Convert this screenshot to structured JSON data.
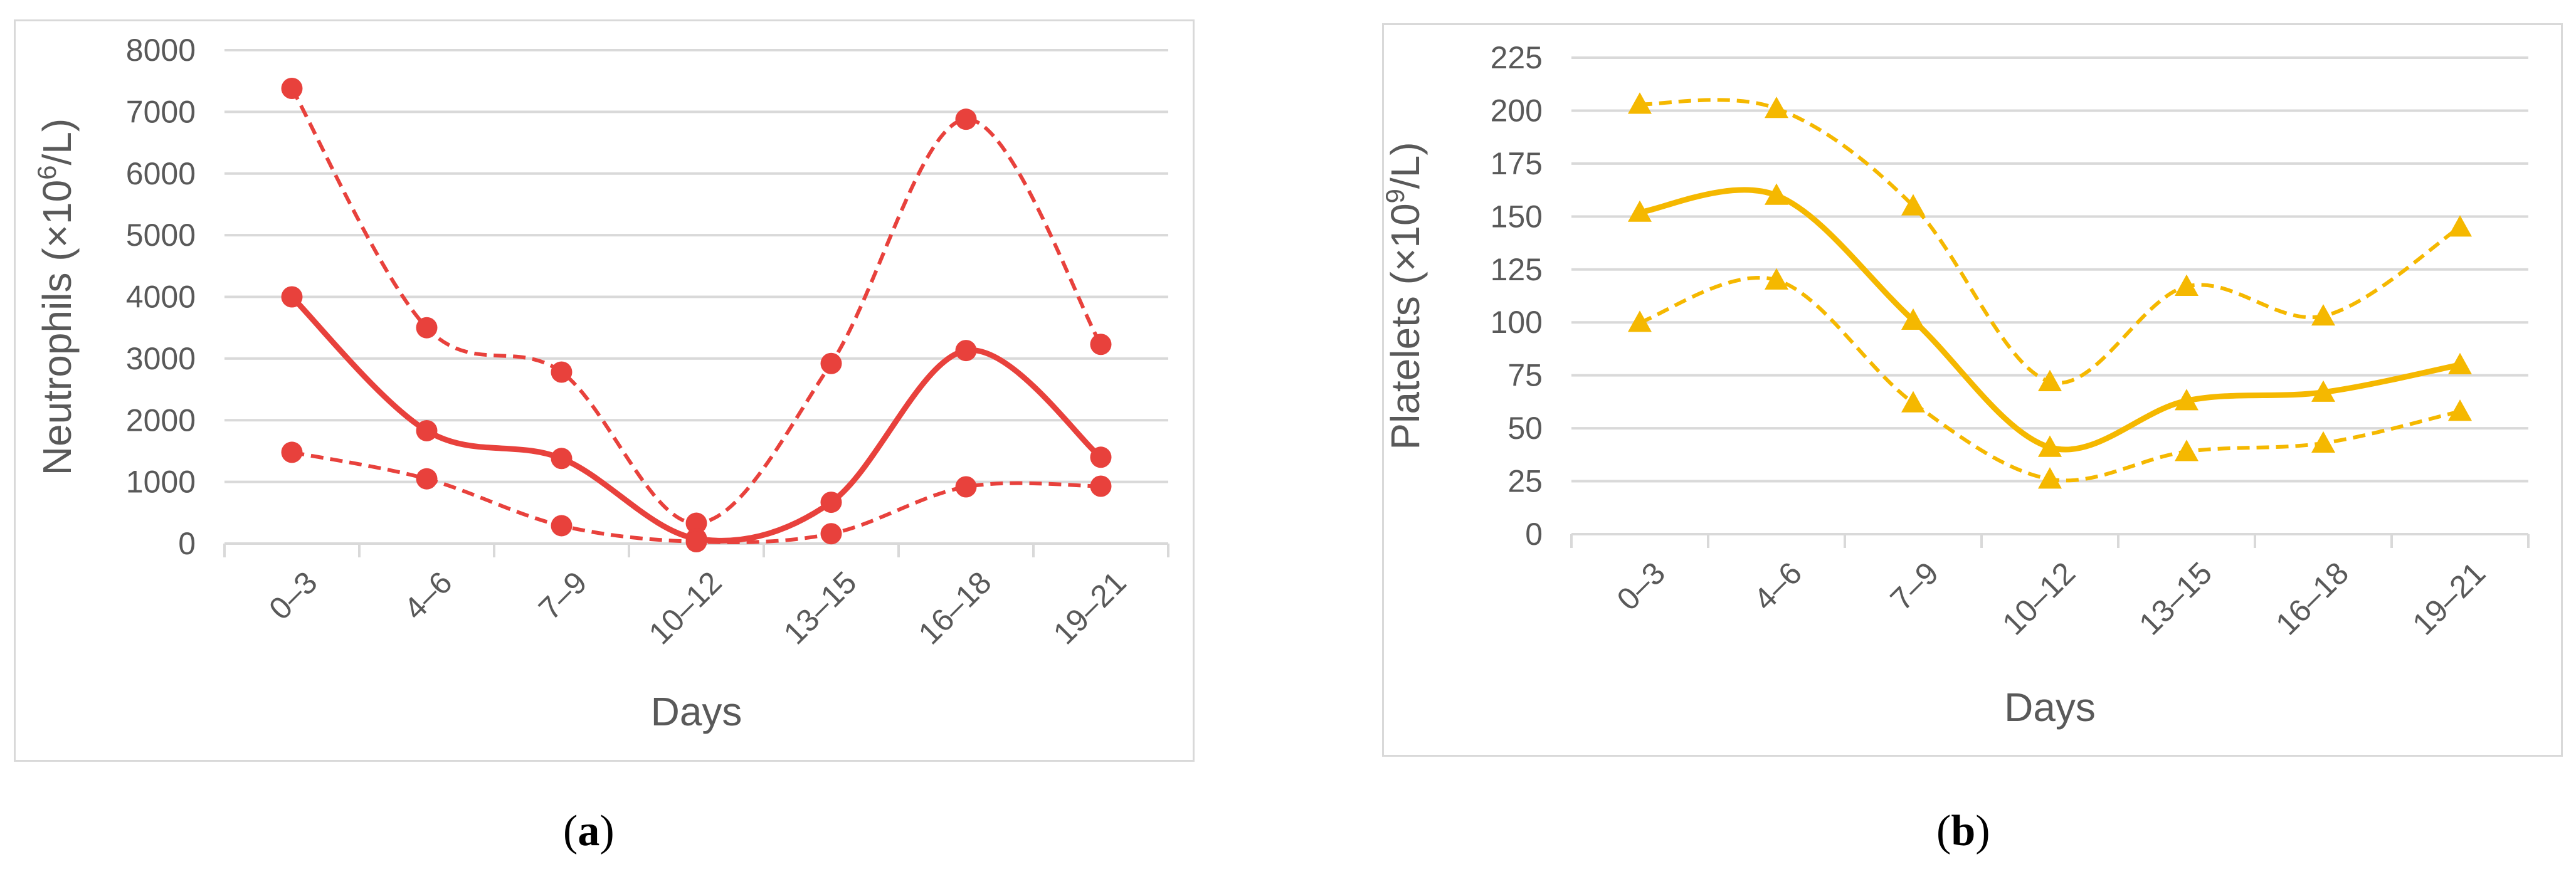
{
  "figure": {
    "caption_a": {
      "open": "(",
      "letter": "a",
      "close": ")"
    },
    "caption_b": {
      "open": "(",
      "letter": "b",
      "close": ")"
    }
  },
  "chart_data": [
    {
      "type": "line",
      "categories": [
        "0–3",
        "4–6",
        "7–9",
        "10–12",
        "13–15",
        "16–18",
        "19–21"
      ],
      "xlabel": "Days",
      "ylabel_main": "Neutrophils (×10",
      "ylabel_sup": "6",
      "ylabel_tail": "/L)",
      "ylim": [
        0,
        8000
      ],
      "yticks": [
        0,
        1000,
        2000,
        3000,
        4000,
        5000,
        6000,
        7000,
        8000
      ],
      "grid": true,
      "color": "#e8413c",
      "marker": "circle",
      "series": [
        {
          "style": "dashed",
          "values": [
            7380,
            3500,
            2780,
            330,
            2920,
            6880,
            3230
          ]
        },
        {
          "style": "solid",
          "values": [
            4000,
            1830,
            1380,
            80,
            670,
            3130,
            1400
          ]
        },
        {
          "style": "dashed",
          "values": [
            1480,
            1050,
            290,
            30,
            160,
            920,
            930
          ]
        }
      ]
    },
    {
      "type": "line",
      "categories": [
        "0–3",
        "4–6",
        "7–9",
        "10–12",
        "13–15",
        "16–18",
        "19–21"
      ],
      "xlabel": "Days",
      "ylabel_main": "Platelets (×10",
      "ylabel_sup": "9",
      "ylabel_tail": "/L)",
      "ylim": [
        0,
        225
      ],
      "yticks": [
        0,
        25,
        50,
        75,
        100,
        125,
        150,
        175,
        200,
        225
      ],
      "grid": true,
      "color": "#f5b800",
      "marker": "triangle",
      "series": [
        {
          "style": "dashed",
          "values": [
            203,
            201,
            155,
            72,
            117,
            103,
            145
          ]
        },
        {
          "style": "solid",
          "values": [
            152,
            160,
            101,
            41,
            63,
            67,
            80
          ]
        },
        {
          "style": "dashed",
          "values": [
            100,
            120,
            62,
            26,
            39,
            43,
            58
          ]
        }
      ]
    }
  ]
}
